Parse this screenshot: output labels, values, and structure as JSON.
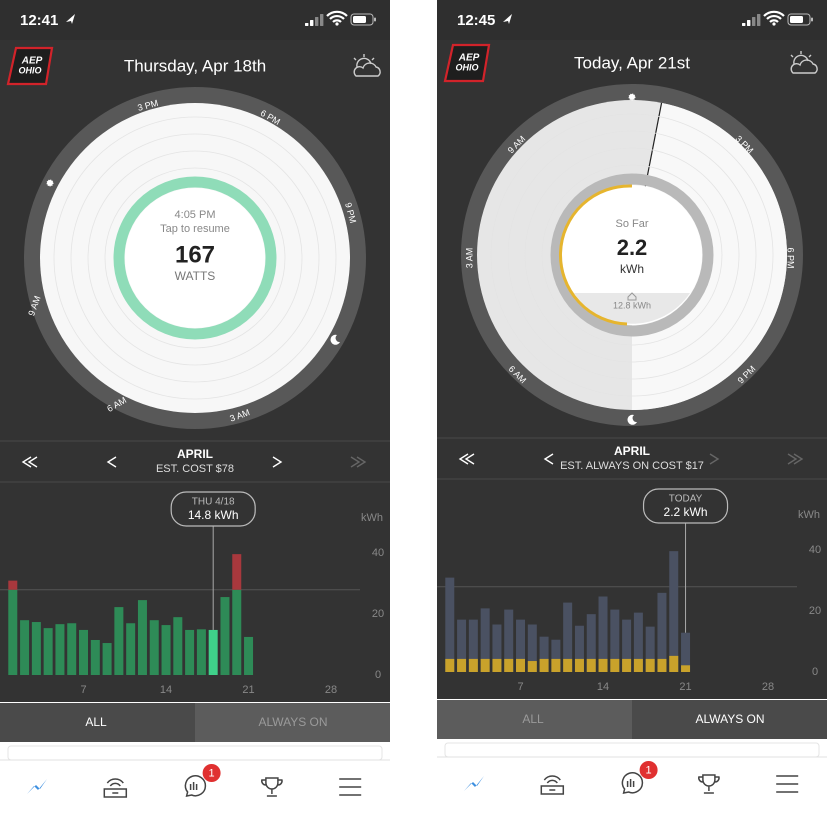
{
  "screens": [
    {
      "status_time": "12:41",
      "logo": [
        "AEP",
        "OHIO"
      ],
      "title": "Thursday, Apr 18th",
      "dial": {
        "hour_labels": [
          "3 PM",
          "6 PM",
          "9 PM",
          "9 AM",
          "6 AM",
          "3 AM"
        ],
        "center": [
          "4:05 PM",
          "Tap to resume",
          "167",
          "WATTS"
        ]
      },
      "nav": {
        "month": "APRIL",
        "cost": "EST. COST $78"
      },
      "tooltip": {
        "date": "THU 4/18",
        "value": "14.8 kWh"
      },
      "tabs": [
        "ALL",
        "ALWAYS ON"
      ],
      "selected_tab": 0,
      "badge": "1",
      "chart_data": {
        "type": "bar",
        "y_label": "kWh",
        "x": [
          1,
          2,
          3,
          4,
          5,
          6,
          7,
          8,
          9,
          10,
          11,
          12,
          13,
          14,
          15,
          16,
          17,
          18,
          19,
          20,
          21
        ],
        "values": [
          31,
          18,
          17.4,
          15.4,
          16.7,
          17,
          14.8,
          11.5,
          10.5,
          22.3,
          17,
          24.6,
          18,
          16.4,
          19,
          14.8,
          15,
          14.8,
          25.6,
          39.7,
          12.5
        ],
        "color": "#2e8b57",
        "over_color": "#a8383d",
        "highlight": 17,
        "highlight_color": "#3fd18a",
        "reference_line": 28,
        "xlim": [
          0,
          33
        ],
        "xticks": [
          7,
          14,
          21,
          28
        ],
        "ylim": [
          0,
          45
        ],
        "yticks": [
          0,
          20,
          40
        ]
      }
    },
    {
      "status_time": "12:45",
      "logo": [
        "AEP",
        "OHIO"
      ],
      "title": "Today, Apr 21st",
      "dial": {
        "hour_labels": [
          "3 PM",
          "6 PM",
          "9 PM",
          "9 AM",
          "6 AM",
          "3 AM"
        ],
        "center": [
          "So Far",
          "2.2",
          "kWh",
          "12.8 kWh"
        ]
      },
      "nav": {
        "month": "APRIL",
        "cost": "EST. ALWAYS ON COST $17"
      },
      "tooltip": {
        "date": "TODAY",
        "value": "2.2 kWh"
      },
      "tabs": [
        "ALL",
        "ALWAYS ON"
      ],
      "selected_tab": 1,
      "badge": "1",
      "chart_data": {
        "type": "overlay_bar",
        "y_label": "kWh",
        "x": [
          1,
          2,
          3,
          4,
          5,
          6,
          7,
          8,
          9,
          10,
          11,
          12,
          13,
          14,
          15,
          16,
          17,
          18,
          19,
          20,
          21
        ],
        "series": [
          {
            "color": "#4a5162",
            "values": [
              31,
              17.2,
              17.2,
              20.9,
              15.6,
              20.5,
              17.2,
              15.6,
              11.6,
              10.6,
              22.8,
              15.2,
              19,
              24.8,
              20.5,
              17.2,
              19.5,
              14.9,
              26,
              39.7,
              12.9
            ]
          },
          {
            "color": "#c9a22b",
            "values": [
              4.3,
              4.3,
              4.3,
              4.3,
              4.3,
              4.3,
              4.3,
              3.6,
              4.3,
              4.3,
              4.3,
              4.3,
              4.3,
              4.3,
              4.3,
              4.3,
              4.3,
              4.3,
              4.3,
              5.3,
              2.2
            ]
          }
        ],
        "highlight": 20,
        "reference_line": 28,
        "xlim": [
          0,
          33
        ],
        "xticks": [
          7,
          14,
          21,
          28
        ],
        "ylim": [
          0,
          45
        ],
        "yticks": [
          0,
          20,
          40
        ]
      }
    }
  ]
}
